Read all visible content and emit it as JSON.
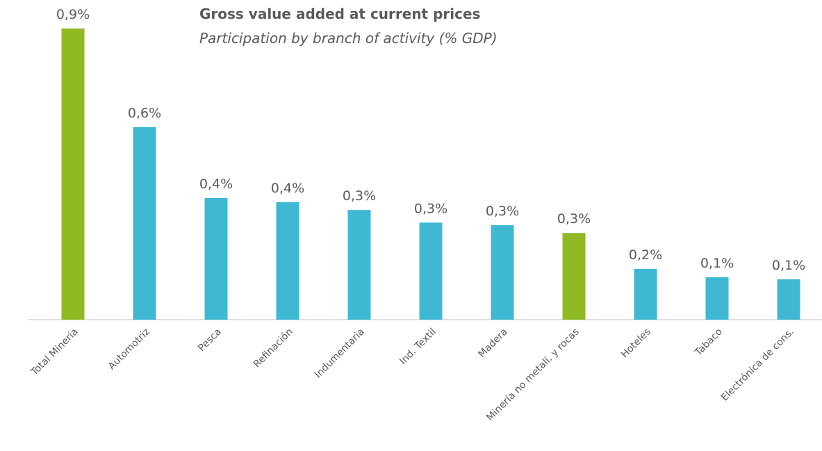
{
  "chart_data": {
    "type": "bar",
    "title": "Gross value added at current prices",
    "subtitle": "Participation by branch of activity (% GDP)",
    "categories": [
      "Total Minería",
      "Automotriz",
      "Pesca",
      "Refinación",
      "Indumentaria",
      "Ind. Textil",
      "Madera",
      "Minería no metalí. y rocas",
      "Hoteles",
      "Tabaco",
      "Electrónica de cons."
    ],
    "values": [
      0.9,
      0.595,
      0.376,
      0.363,
      0.339,
      0.3,
      0.292,
      0.268,
      0.157,
      0.131,
      0.125
    ],
    "value_labels": [
      "0,9%",
      "0,6%",
      "0,4%",
      "0,4%",
      "0,3%",
      "0,3%",
      "0,3%",
      "0,3%",
      "0,2%",
      "0,1%",
      "0,1%"
    ],
    "colors": [
      "#8fba24",
      "#3fb9d3",
      "#3fb9d3",
      "#3fb9d3",
      "#3fb9d3",
      "#3fb9d3",
      "#3fb9d3",
      "#8fba24",
      "#3fb9d3",
      "#3fb9d3",
      "#3fb9d3"
    ]
  }
}
